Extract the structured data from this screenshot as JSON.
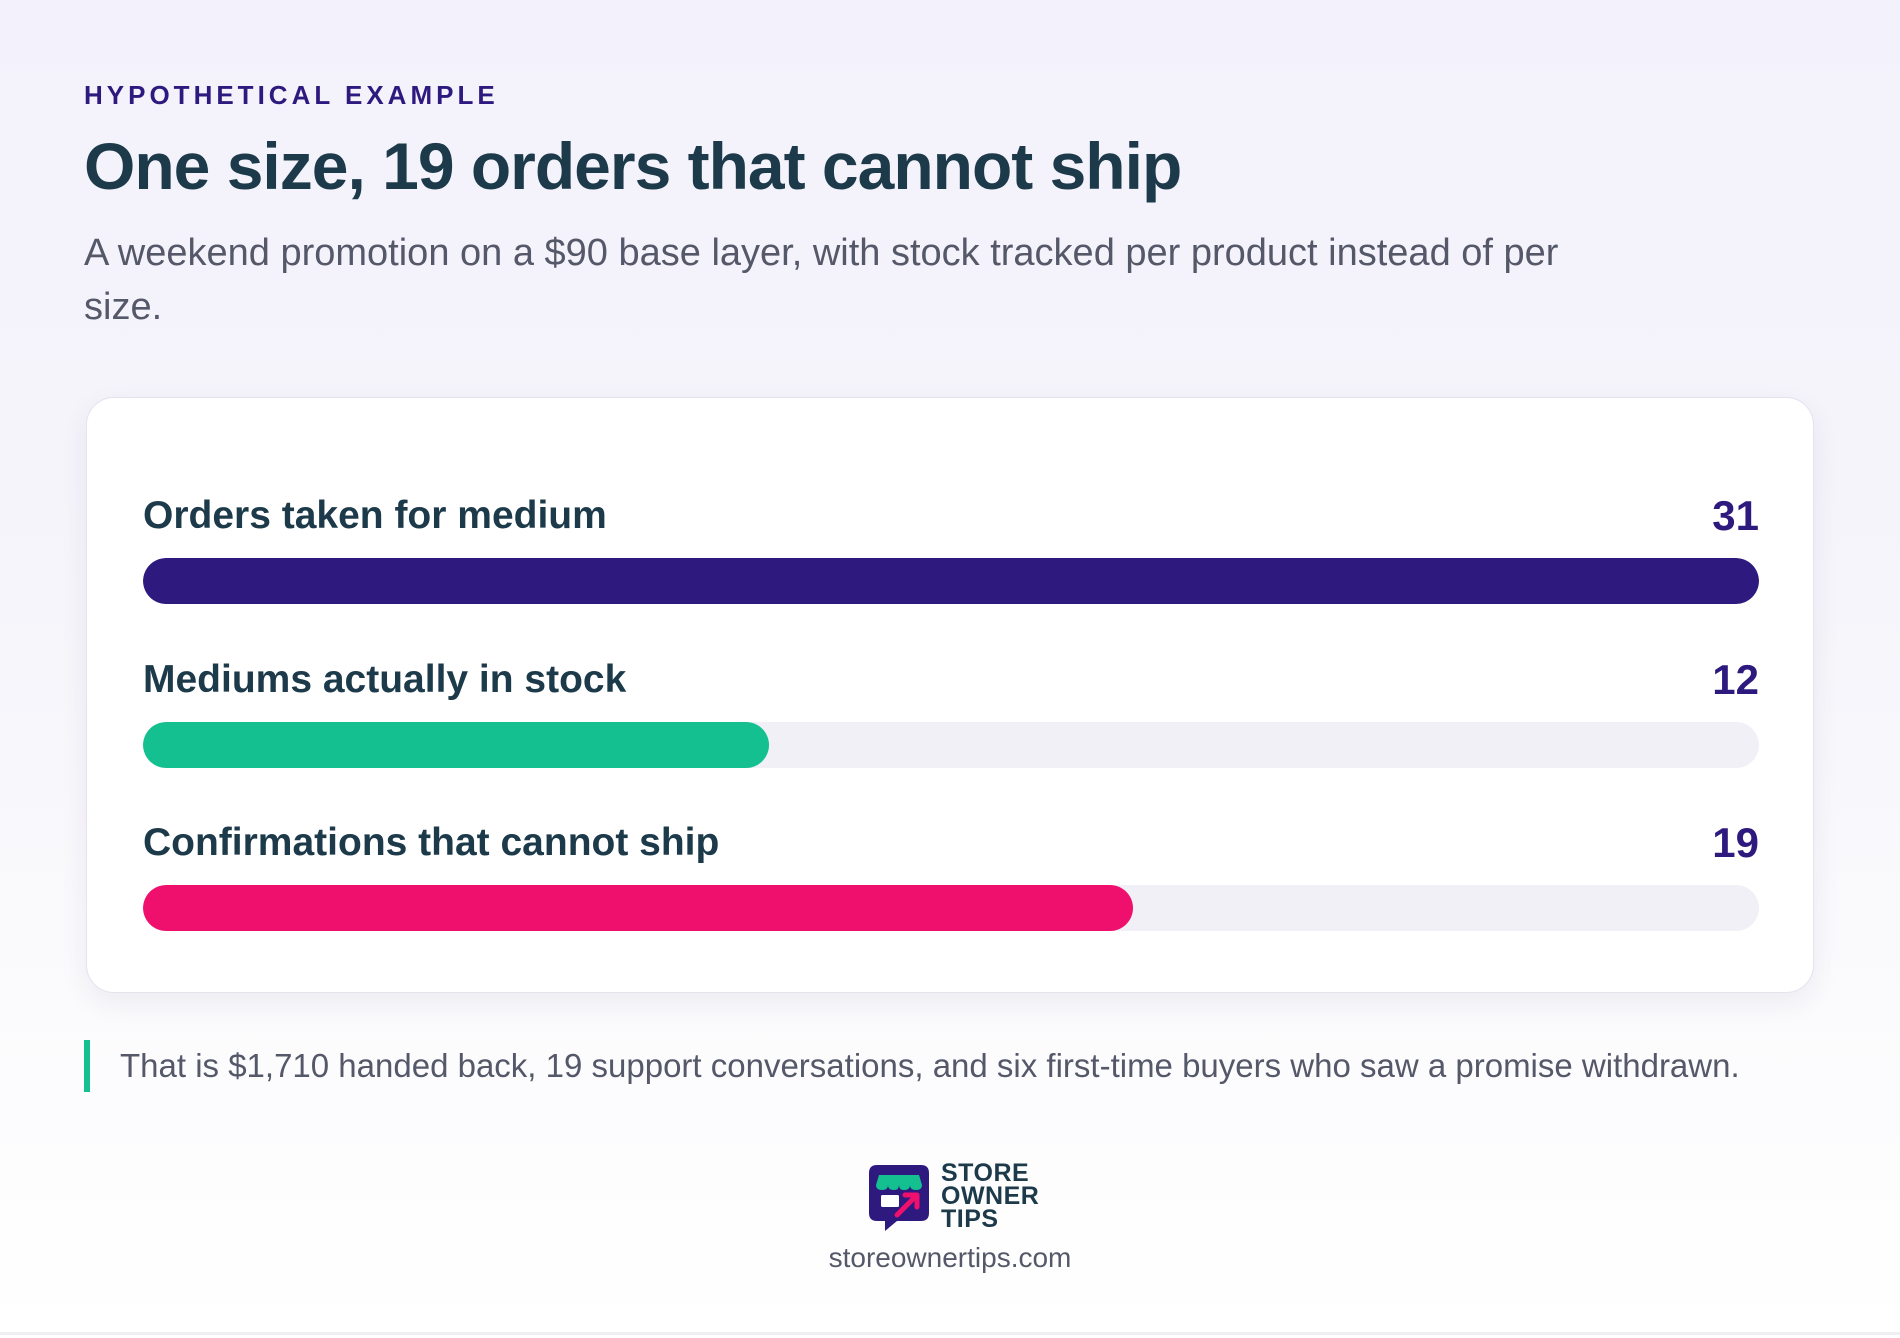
{
  "eyebrow": "HYPOTHETICAL EXAMPLE",
  "title": "One size, 19 orders that cannot ship",
  "subtitle": "A weekend promotion on a $90 base layer, with stock tracked per product instead of per size.",
  "chart_data": {
    "type": "bar",
    "orientation": "horizontal",
    "categories": [
      "Orders taken for medium",
      "Mediums actually in stock",
      "Confirmations that cannot ship"
    ],
    "values": [
      31,
      12,
      19
    ],
    "value_labels": [
      "31",
      "12",
      "19"
    ],
    "xlim": [
      0,
      31
    ],
    "colors": [
      "#2e1a7f",
      "#14c08f",
      "#ef0f6c"
    ],
    "track_color": "#f1f0f6",
    "grid": false,
    "legend": "none"
  },
  "note": "That is $1,710 handed back, 19 support conversations, and six first-time buyers who saw a promise withdrawn.",
  "brand": {
    "lines": [
      "STORE",
      "OWNER",
      "TIPS"
    ],
    "logo_icon": "storefront-chat-icon",
    "url": "storeownertips.com"
  }
}
